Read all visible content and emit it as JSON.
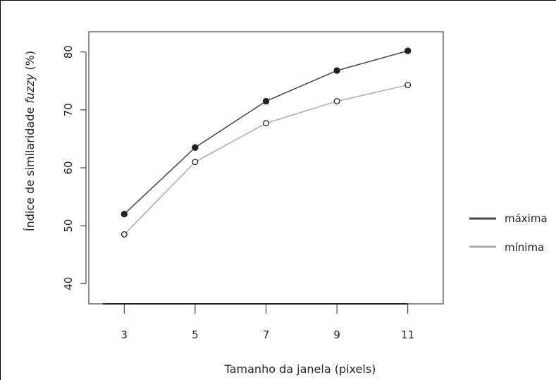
{
  "chart_data": {
    "type": "line",
    "xlabel": "Tamanho da janela (pixels)",
    "ylabel_prefix": "Índice de similaridade ",
    "ylabel_italic": "fuzzy",
    "ylabel_suffix": " (%)",
    "x": [
      3,
      5,
      7,
      9,
      11
    ],
    "xticks": [
      3,
      5,
      7,
      9,
      11
    ],
    "yticks": [
      40,
      50,
      60,
      70,
      80
    ],
    "xlim": [
      2,
      12
    ],
    "ylim": [
      36.5,
      83.5
    ],
    "grid": false,
    "legend_position": "right",
    "series": [
      {
        "name": "máxima",
        "values": [
          52,
          63.5,
          71.5,
          76.8,
          80.2
        ],
        "color": "#444444",
        "marker": "filled-circle"
      },
      {
        "name": "mínima",
        "values": [
          48.5,
          61,
          67.7,
          71.5,
          74.3
        ],
        "color": "#aaaaaa",
        "marker": "open-circle"
      }
    ]
  }
}
